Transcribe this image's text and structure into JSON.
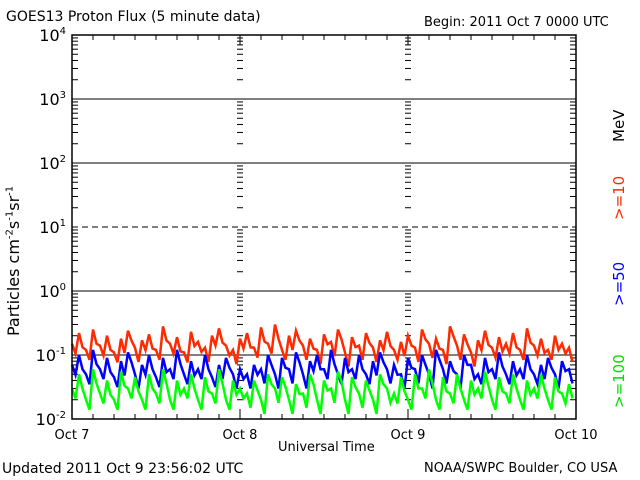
{
  "header": {
    "title": "GOES13 Proton Flux (5 minute data)",
    "begin": "Begin: 2011 Oct 7 0000 UTC"
  },
  "footer": {
    "updated": "Updated 2011 Oct  9 23:56:02 UTC",
    "source": "NOAA/SWPC Boulder, CO USA"
  },
  "legend": {
    "unit": "MeV",
    "colors": {
      "p10": "#ff2a00",
      "p50": "#0000ff",
      "p100": "#00ff00"
    }
  },
  "chart_data": {
    "type": "line",
    "title": "GOES13 Proton Flux (5 minute data)",
    "xlabel": "Universal Time",
    "ylabel": "Particles cm-2s-1sr-1",
    "yscale": "log",
    "ylim": [
      0.01,
      10000
    ],
    "xlim": [
      "2011-10-07 00:00",
      "2011-10-10 00:00"
    ],
    "xticks": [
      "Oct 7",
      "Oct 8",
      "Oct 9",
      "Oct 10"
    ],
    "yticks": [
      {
        "base": "10",
        "exp": "-2"
      },
      {
        "base": "10",
        "exp": "-1"
      },
      {
        "base": "10",
        "exp": "0"
      },
      {
        "base": "10",
        "exp": "1"
      },
      {
        "base": "10",
        "exp": "2"
      },
      {
        "base": "10",
        "exp": "3"
      },
      {
        "base": "10",
        "exp": "4"
      }
    ],
    "grid": "horizontal lines at each decade (10^1 dashed), dashed verticals at day boundaries",
    "x_interval_hours": 1,
    "series": [
      {
        "name": ">=10",
        "color": "#ff2a00",
        "values": [
          0.15,
          0.22,
          0.12,
          0.25,
          0.14,
          0.2,
          0.11,
          0.18,
          0.24,
          0.13,
          0.17,
          0.21,
          0.12,
          0.28,
          0.15,
          0.19,
          0.11,
          0.23,
          0.16,
          0.13,
          0.2,
          0.26,
          0.14,
          0.12,
          0.18,
          0.22,
          0.13,
          0.27,
          0.15,
          0.3,
          0.12,
          0.2,
          0.24,
          0.14,
          0.18,
          0.12,
          0.21,
          0.16,
          0.25,
          0.11,
          0.19,
          0.14,
          0.22,
          0.13,
          0.17,
          0.23,
          0.12,
          0.16,
          0.2,
          0.13,
          0.25,
          0.15,
          0.18,
          0.12,
          0.28,
          0.14,
          0.21,
          0.11,
          0.17,
          0.24,
          0.13,
          0.19,
          0.15,
          0.22,
          0.12,
          0.26,
          0.14,
          0.18,
          0.12,
          0.2,
          0.15,
          0.13
        ]
      },
      {
        "name": ">=50",
        "color": "#0000ff",
        "values": [
          0.07,
          0.1,
          0.05,
          0.12,
          0.06,
          0.09,
          0.045,
          0.08,
          0.11,
          0.05,
          0.07,
          0.1,
          0.045,
          0.09,
          0.06,
          0.12,
          0.05,
          0.08,
          0.06,
          0.1,
          0.045,
          0.07,
          0.09,
          0.05,
          0.06,
          0.05,
          0.07,
          0.06,
          0.1,
          0.05,
          0.09,
          0.06,
          0.11,
          0.05,
          0.08,
          0.1,
          0.06,
          0.12,
          0.05,
          0.09,
          0.06,
          0.1,
          0.05,
          0.08,
          0.11,
          0.06,
          0.07,
          0.05,
          0.09,
          0.06,
          0.1,
          0.05,
          0.12,
          0.06,
          0.08,
          0.05,
          0.1,
          0.07,
          0.05,
          0.09,
          0.06,
          0.11,
          0.05,
          0.08,
          0.06,
          0.1,
          0.05,
          0.07,
          0.09,
          0.05,
          0.08,
          0.06
        ]
      },
      {
        "name": ">=100",
        "color": "#00ff00",
        "values": [
          0.03,
          0.05,
          0.02,
          0.06,
          0.025,
          0.04,
          0.02,
          0.055,
          0.03,
          0.045,
          0.02,
          0.05,
          0.025,
          0.06,
          0.02,
          0.04,
          0.03,
          0.05,
          0.02,
          0.045,
          0.025,
          0.06,
          0.02,
          0.04,
          0.03,
          0.025,
          0.04,
          0.02,
          0.05,
          0.03,
          0.045,
          0.02,
          0.035,
          0.025,
          0.05,
          0.02,
          0.04,
          0.03,
          0.055,
          0.02,
          0.045,
          0.025,
          0.04,
          0.02,
          0.05,
          0.03,
          0.025,
          0.045,
          0.02,
          0.05,
          0.03,
          0.06,
          0.02,
          0.045,
          0.025,
          0.05,
          0.02,
          0.04,
          0.03,
          0.055,
          0.02,
          0.045,
          0.025,
          0.05,
          0.02,
          0.04,
          0.03,
          0.05,
          0.02,
          0.045,
          0.025,
          0.035
        ]
      }
    ]
  }
}
